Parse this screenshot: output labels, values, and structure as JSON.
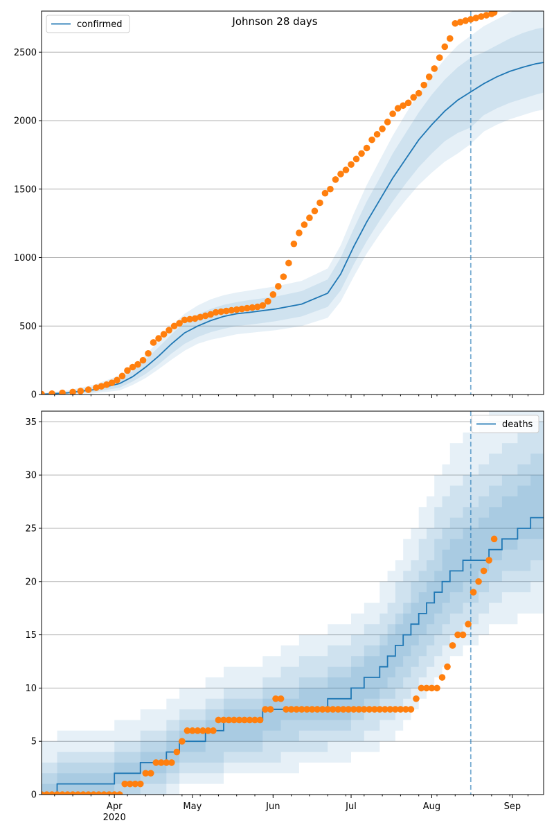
{
  "chart_data": [
    {
      "type": "line",
      "title": "Johnson 28 days",
      "legend": {
        "label": "confirmed",
        "placement": "top-left"
      },
      "xlim": [
        0,
        193
      ],
      "ylim": [
        0,
        2800
      ],
      "yticks": [
        0,
        500,
        1000,
        1500,
        2000,
        2500
      ],
      "grid": "y",
      "cutoff_day": 165,
      "colors": {
        "line": "#1f77b4",
        "band": "#1f77b4",
        "points": "#ff7f0e",
        "cutoff": "#1f77b4"
      },
      "series": [
        {
          "name": "confirmed",
          "kind": "line",
          "x": [
            0,
            10,
            20,
            30,
            35,
            40,
            45,
            50,
            55,
            60,
            65,
            70,
            75,
            80,
            90,
            100,
            110,
            115,
            120,
            125,
            130,
            135,
            140,
            145,
            150,
            155,
            160,
            165,
            170,
            175,
            180,
            185,
            190,
            193
          ],
          "y": [
            2,
            12,
            35,
            80,
            130,
            200,
            280,
            370,
            450,
            500,
            540,
            570,
            590,
            600,
            625,
            660,
            740,
            880,
            1080,
            1260,
            1420,
            1580,
            1720,
            1860,
            1970,
            2070,
            2150,
            2210,
            2270,
            2320,
            2360,
            2390,
            2415,
            2425
          ],
          "bands": [
            {
              "lower": [
                0,
                4,
                18,
                50,
                95,
                150,
                220,
                300,
                370,
                420,
                455,
                480,
                500,
                510,
                535,
                570,
                640,
                760,
                950,
                1120,
                1270,
                1410,
                1540,
                1660,
                1760,
                1850,
                1910,
                1950,
                2040,
                2090,
                2130,
                2160,
                2190,
                2205
              ],
              "upper": [
                6,
                22,
                55,
                115,
                170,
                255,
                345,
                440,
                530,
                585,
                625,
                655,
                675,
                690,
                715,
                755,
                840,
                1000,
                1210,
                1410,
                1580,
                1760,
                1910,
                2060,
                2190,
                2300,
                2390,
                2460,
                2500,
                2550,
                2600,
                2640,
                2670,
                2680
              ]
            },
            {
              "lower": [
                0,
                1,
                8,
                30,
                70,
                120,
                185,
                255,
                320,
                370,
                400,
                420,
                440,
                450,
                470,
                500,
                560,
                680,
                860,
                1030,
                1170,
                1300,
                1420,
                1530,
                1620,
                1700,
                1760,
                1830,
                1920,
                1970,
                2010,
                2040,
                2070,
                2080
              ],
              "upper": [
                9,
                30,
                70,
                140,
                200,
                290,
                390,
                500,
                590,
                650,
                695,
                725,
                745,
                760,
                790,
                830,
                920,
                1090,
                1320,
                1530,
                1710,
                1890,
                2050,
                2200,
                2330,
                2450,
                2550,
                2620,
                2690,
                2740,
                2790,
                2830,
                2870,
                2880
              ]
            }
          ]
        },
        {
          "name": "confirmed-observed",
          "kind": "scatter",
          "x": [
            0,
            4,
            8,
            12,
            15,
            18,
            21,
            23,
            25,
            27,
            29,
            31,
            33,
            35,
            37,
            39,
            41,
            43,
            45,
            47,
            49,
            51,
            53,
            55,
            57,
            59,
            61,
            63,
            65,
            67,
            69,
            71,
            73,
            75,
            77,
            79,
            81,
            83,
            85,
            87,
            89,
            91,
            93,
            95,
            97,
            99,
            101,
            103,
            105,
            107,
            109,
            111,
            113,
            115,
            117,
            119,
            121,
            123,
            125,
            127,
            129,
            131,
            133,
            135,
            137,
            139,
            141,
            143,
            145,
            147,
            149,
            151,
            153,
            155,
            157,
            159,
            161,
            163,
            165,
            167,
            169,
            171,
            173,
            174
          ],
          "y": [
            3,
            6,
            12,
            18,
            25,
            35,
            50,
            60,
            72,
            85,
            105,
            135,
            175,
            200,
            220,
            250,
            300,
            380,
            410,
            440,
            470,
            500,
            520,
            545,
            550,
            555,
            565,
            575,
            585,
            600,
            605,
            610,
            615,
            620,
            625,
            630,
            635,
            640,
            650,
            680,
            730,
            790,
            860,
            960,
            1100,
            1180,
            1240,
            1290,
            1340,
            1400,
            1470,
            1500,
            1570,
            1610,
            1640,
            1680,
            1720,
            1760,
            1800,
            1860,
            1900,
            1940,
            1990,
            2050,
            2090,
            2110,
            2130,
            2170,
            2200,
            2260,
            2320,
            2380,
            2460,
            2540,
            2600,
            2710,
            2720,
            2730,
            2740,
            2750,
            2760,
            2770,
            2780,
            2790
          ]
        }
      ]
    },
    {
      "type": "line",
      "legend": {
        "label": "deaths",
        "placement": "top-right"
      },
      "xlim": [
        0,
        193
      ],
      "ylim": [
        0,
        36
      ],
      "yticks": [
        0,
        5,
        10,
        15,
        20,
        25,
        30,
        35
      ],
      "xticks": [
        {
          "day": 28,
          "label": "Apr",
          "sublabel": "2020"
        },
        {
          "day": 58,
          "label": "May"
        },
        {
          "day": 89,
          "label": "Jun"
        },
        {
          "day": 119,
          "label": "Jul"
        },
        {
          "day": 150,
          "label": "Aug"
        },
        {
          "day": 181,
          "label": "Sep"
        }
      ],
      "grid": "y",
      "cutoff_day": 165,
      "colors": {
        "line": "#1f77b4",
        "band": "#1f77b4",
        "points": "#ff7f0e",
        "cutoff": "#1f77b4"
      },
      "series": [
        {
          "name": "deaths",
          "kind": "step",
          "x": [
            0,
            6,
            28,
            38,
            48,
            53,
            63,
            70,
            85,
            92,
            99,
            110,
            119,
            124,
            130,
            133,
            136,
            139,
            142,
            145,
            148,
            151,
            154,
            157,
            162,
            168,
            172,
            177,
            183,
            188,
            193
          ],
          "y": [
            0,
            1,
            2,
            3,
            4,
            5,
            6,
            7,
            8,
            8,
            8,
            9,
            10,
            11,
            12,
            13,
            14,
            15,
            16,
            17,
            18,
            19,
            20,
            21,
            22,
            22,
            23,
            24,
            25,
            26,
            26
          ],
          "bands": [
            {
              "lower": [
                0,
                0,
                1,
                2,
                3,
                4,
                5,
                5,
                6,
                7,
                7,
                7,
                8,
                9,
                10,
                11,
                12,
                13,
                14,
                15,
                16,
                17,
                18,
                19,
                20,
                21,
                22,
                23,
                24,
                24,
                24
              ],
              "upper": [
                1,
                2,
                3,
                4,
                5,
                6,
                7,
                8,
                9,
                9,
                10,
                11,
                12,
                13,
                14,
                15,
                16,
                17,
                18,
                19,
                20,
                21,
                23,
                24,
                25,
                26,
                27,
                28,
                29,
                30,
                30
              ]
            },
            {
              "lower": [
                0,
                0,
                0,
                1,
                2,
                3,
                3,
                4,
                5,
                5,
                6,
                6,
                7,
                8,
                9,
                9,
                10,
                11,
                12,
                13,
                14,
                15,
                16,
                17,
                18,
                19,
                20,
                21,
                21,
                22,
                22
              ],
              "upper": [
                2,
                3,
                4,
                5,
                6,
                7,
                8,
                9,
                10,
                10,
                11,
                12,
                13,
                14,
                15,
                16,
                17,
                18,
                20,
                21,
                22,
                24,
                25,
                26,
                27,
                28,
                29,
                30,
                31,
                32,
                32
              ]
            },
            {
              "lower": [
                0,
                0,
                0,
                0,
                1,
                2,
                2,
                3,
                3,
                4,
                4,
                5,
                5,
                6,
                7,
                7,
                8,
                9,
                10,
                11,
                12,
                13,
                14,
                15,
                16,
                17,
                18,
                19,
                19,
                20,
                20
              ],
              "upper": [
                3,
                4,
                5,
                6,
                7,
                8,
                9,
                10,
                11,
                12,
                13,
                14,
                15,
                16,
                17,
                18,
                20,
                21,
                22,
                24,
                25,
                27,
                28,
                29,
                30,
                31,
                32,
                33,
                34,
                35,
                35
              ]
            },
            {
              "lower": [
                0,
                0,
                0,
                0,
                0,
                1,
                1,
                2,
                2,
                2,
                3,
                3,
                4,
                4,
                5,
                5,
                6,
                7,
                8,
                9,
                10,
                11,
                12,
                13,
                14,
                15,
                16,
                16,
                17,
                17,
                17
              ],
              "upper": [
                5,
                6,
                7,
                8,
                9,
                10,
                11,
                12,
                13,
                14,
                15,
                16,
                17,
                18,
                20,
                21,
                22,
                24,
                25,
                27,
                28,
                30,
                31,
                33,
                34,
                35,
                36,
                36,
                36,
                36,
                36
              ]
            }
          ]
        },
        {
          "name": "deaths-observed",
          "kind": "scatter",
          "x": [
            0,
            2,
            4,
            6,
            8,
            10,
            12,
            14,
            16,
            18,
            20,
            22,
            24,
            26,
            28,
            30,
            32,
            34,
            36,
            38,
            40,
            42,
            44,
            46,
            48,
            50,
            52,
            54,
            56,
            58,
            60,
            62,
            64,
            66,
            68,
            70,
            72,
            74,
            76,
            78,
            80,
            82,
            84,
            86,
            88,
            90,
            92,
            94,
            96,
            98,
            100,
            102,
            104,
            106,
            108,
            110,
            112,
            114,
            116,
            118,
            120,
            122,
            124,
            126,
            128,
            130,
            132,
            134,
            136,
            138,
            140,
            142,
            144,
            146,
            148,
            150,
            152,
            154,
            156,
            158,
            160,
            162,
            164,
            166,
            168,
            170,
            172,
            174
          ],
          "y": [
            0,
            0,
            0,
            0,
            0,
            0,
            0,
            0,
            0,
            0,
            0,
            0,
            0,
            0,
            0,
            0,
            1,
            1,
            1,
            1,
            2,
            2,
            3,
            3,
            3,
            3,
            4,
            5,
            6,
            6,
            6,
            6,
            6,
            6,
            7,
            7,
            7,
            7,
            7,
            7,
            7,
            7,
            7,
            8,
            8,
            9,
            9,
            8,
            8,
            8,
            8,
            8,
            8,
            8,
            8,
            8,
            8,
            8,
            8,
            8,
            8,
            8,
            8,
            8,
            8,
            8,
            8,
            8,
            8,
            8,
            8,
            8,
            9,
            10,
            10,
            10,
            10,
            11,
            12,
            14,
            15,
            15,
            16,
            19,
            20,
            21,
            22,
            24
          ]
        }
      ]
    }
  ]
}
